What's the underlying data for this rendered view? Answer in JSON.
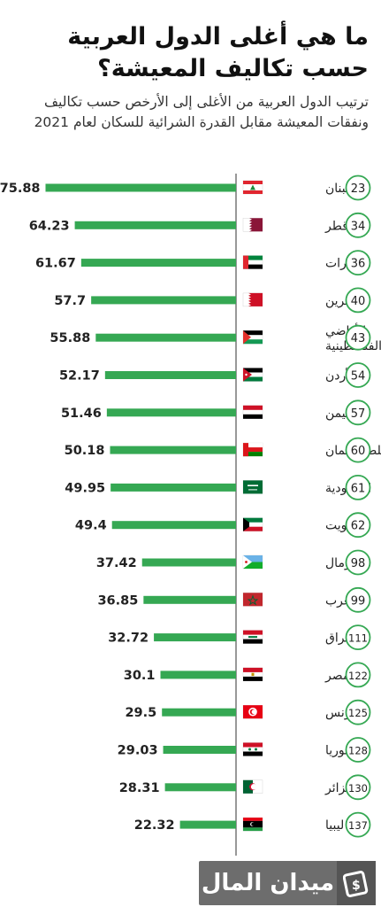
{
  "header": {
    "title": "ما هي أغلى الدول العربية حسب تكاليف المعيشة؟",
    "subtitle": "ترتيب الدول العربية من الأغلى إلى الأرخص حسب تكاليف ونفقات المعيشة مقابل القدرة الشرائية للسكان لعام 2021"
  },
  "colors": {
    "bar": "#35a853",
    "axis": "#555555",
    "rank_border": "#35a853"
  },
  "chart_data": {
    "type": "bar",
    "orientation": "horizontal",
    "title": "ما هي أغلى الدول العربية حسب تكاليف المعيشة؟",
    "xlabel": "",
    "ylabel": "",
    "xlim": [
      0,
      80
    ],
    "grid": false,
    "legend": "none",
    "categories": [
      "لبنان",
      "قطر",
      "الإمارات",
      "البحرين",
      "الأراضي الفلسطينية",
      "الأردن",
      "اليمن",
      "سلطنة عمان",
      "السعودية",
      "الكويت",
      "الصومال",
      "المغرب",
      "العراق",
      "مصر",
      "تونس",
      "سوريا",
      "الجزائر",
      "ليبيا"
    ],
    "label_lines": [
      [
        "لبنان"
      ],
      [
        "قطر"
      ],
      [
        "الإمارات"
      ],
      [
        "البحرين"
      ],
      [
        "الأراضي",
        "الفلسطينية"
      ],
      [
        "الأردن"
      ],
      [
        "اليمن"
      ],
      [
        "سلطنة عمان"
      ],
      [
        "السعودية"
      ],
      [
        "الكويت"
      ],
      [
        "الصومال"
      ],
      [
        "المغرب"
      ],
      [
        "العراق"
      ],
      [
        "مصر"
      ],
      [
        "تونس"
      ],
      [
        "سوريا"
      ],
      [
        "الجزائر"
      ],
      [
        "ليبيا"
      ]
    ],
    "values": [
      75.88,
      64.23,
      61.67,
      57.7,
      55.88,
      52.17,
      51.46,
      50.18,
      49.95,
      49.4,
      37.42,
      36.85,
      32.72,
      30.1,
      29.5,
      29.03,
      28.31,
      22.32
    ],
    "value_labels": [
      "75.88",
      "64.23",
      "61.67",
      "57.7",
      "55.88",
      "52.17",
      "51.46",
      "50.18",
      "49.95",
      "49.4",
      "37.42",
      "36.85",
      "32.72",
      "30.1",
      "29.5",
      "29.03",
      "28.31",
      "22.32"
    ],
    "ranks": [
      "23",
      "34",
      "36",
      "40",
      "43",
      "54",
      "57",
      "60",
      "61",
      "62",
      "98",
      "99",
      "111",
      "122",
      "125",
      "128",
      "130",
      "137"
    ],
    "flags": [
      "lebanon",
      "qatar",
      "uae",
      "bahrain",
      "palestine",
      "jordan",
      "yemen",
      "oman",
      "saudi",
      "kuwait",
      "djibouti-somalia",
      "morocco",
      "iraq",
      "egypt",
      "tunisia",
      "syria",
      "algeria",
      "libya"
    ]
  },
  "footer": {
    "logo_text": "ميدان المال",
    "logo_icon": "money-bill-icon"
  }
}
